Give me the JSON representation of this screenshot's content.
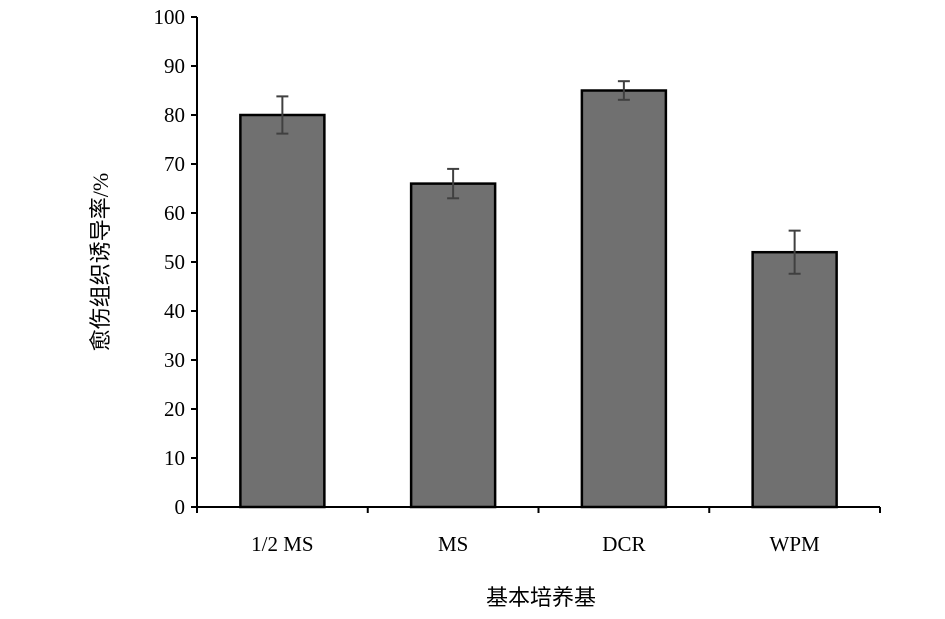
{
  "chart_data": {
    "type": "bar",
    "title": "",
    "xlabel": "基本培养基",
    "ylabel": "愈伤组织诱导率/%",
    "categories": [
      "1/2 MS",
      "MS",
      "DCR",
      "WPM"
    ],
    "values": [
      80,
      66,
      85,
      52
    ],
    "errors": [
      3.8,
      3.0,
      1.9,
      4.4
    ],
    "ylim": [
      0,
      100
    ],
    "yticks": [
      0,
      10,
      20,
      30,
      40,
      50,
      60,
      70,
      80,
      90,
      100
    ],
    "grid": false,
    "colors": {
      "bar": "#707070",
      "edge": "#000000",
      "error": "#404040"
    }
  }
}
